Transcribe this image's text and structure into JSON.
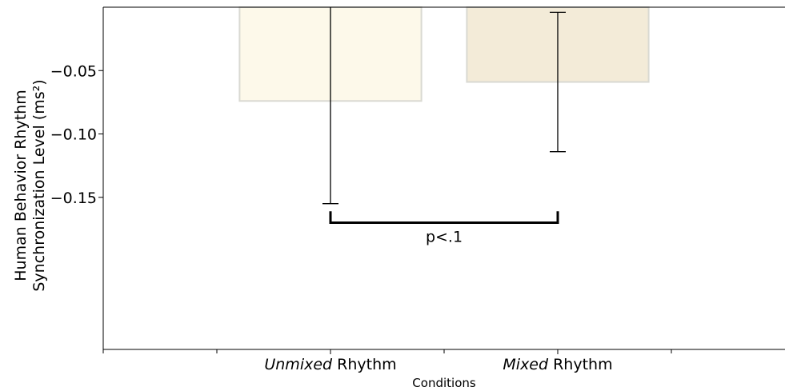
{
  "chart_data": {
    "type": "bar",
    "categories": [
      {
        "italic": "Unmixed",
        "rest": " Rhythm"
      },
      {
        "italic": "Mixed",
        "rest": " Rhythm"
      }
    ],
    "values": [
      -0.074,
      -0.059
    ],
    "error_bars": [
      {
        "low": -0.155,
        "high": 0.0
      },
      {
        "low": -0.114,
        "high": -0.004
      }
    ],
    "bar_colors": [
      "#fdf9ea",
      "#f3ebd8"
    ],
    "bar_edge_color": "#d9d9d2",
    "ylabel_lines": [
      "Human Behavior Rhythm",
      "Synchronization Level (ms²)"
    ],
    "xlabel": "Conditions",
    "ylim": [
      -0.27,
      0.0
    ],
    "yticks": [
      -0.05,
      -0.1,
      -0.15
    ],
    "ytick_labels": [
      "−0.05",
      "−0.10",
      "−0.15"
    ],
    "xlim": [
      -1.0,
      2.0
    ],
    "bar_positions": [
      0.0,
      1.0
    ],
    "bar_width": 0.8,
    "minor_xticks": [
      -1.0,
      -0.5,
      0.5,
      1.5
    ],
    "significance": {
      "label": "p<.1",
      "y": -0.17,
      "tick_top": -0.161
    }
  }
}
